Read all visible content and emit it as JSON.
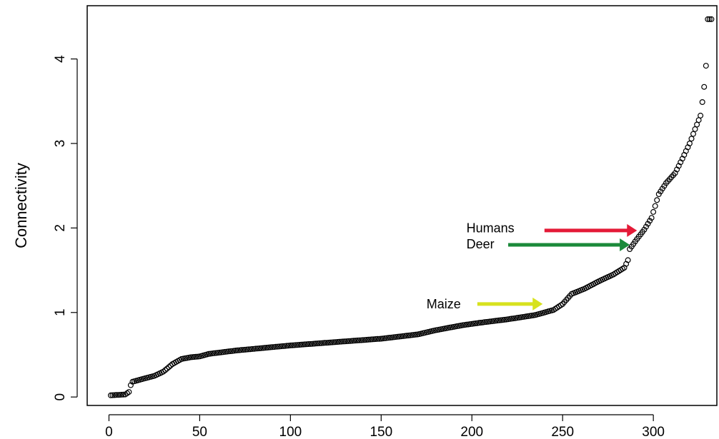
{
  "chart_data": {
    "type": "scatter",
    "title": "",
    "xlabel": "",
    "ylabel": "Connectivity",
    "xlim": [
      -12,
      335
    ],
    "ylim": [
      -0.1,
      4.63
    ],
    "x_ticks": [
      0,
      50,
      100,
      150,
      200,
      250,
      300
    ],
    "y_ticks": [
      0,
      1,
      2,
      3,
      4
    ],
    "grid": false,
    "marker": "open-circle",
    "anchors": [
      [
        1,
        0.02
      ],
      [
        9,
        0.03
      ],
      [
        11,
        0.06
      ],
      [
        12,
        0.14
      ],
      [
        13,
        0.18
      ],
      [
        18,
        0.21
      ],
      [
        25,
        0.25
      ],
      [
        30,
        0.3
      ],
      [
        35,
        0.39
      ],
      [
        40,
        0.45
      ],
      [
        45,
        0.47
      ],
      [
        50,
        0.48
      ],
      [
        55,
        0.51
      ],
      [
        70,
        0.55
      ],
      [
        85,
        0.58
      ],
      [
        100,
        0.61
      ],
      [
        125,
        0.65
      ],
      [
        150,
        0.69
      ],
      [
        170,
        0.74
      ],
      [
        180,
        0.79
      ],
      [
        195,
        0.85
      ],
      [
        205,
        0.88
      ],
      [
        220,
        0.92
      ],
      [
        235,
        0.97
      ],
      [
        245,
        1.03
      ],
      [
        250,
        1.1
      ],
      [
        255,
        1.22
      ],
      [
        262,
        1.28
      ],
      [
        270,
        1.37
      ],
      [
        278,
        1.45
      ],
      [
        284,
        1.53
      ],
      [
        286,
        1.62
      ],
      [
        287,
        1.75
      ],
      [
        291,
        1.87
      ],
      [
        295,
        1.98
      ],
      [
        299,
        2.12
      ],
      [
        303,
        2.4
      ],
      [
        307,
        2.53
      ],
      [
        312,
        2.65
      ],
      [
        316,
        2.82
      ],
      [
        320,
        3.0
      ],
      [
        323,
        3.17
      ],
      [
        326,
        3.33
      ],
      [
        327,
        3.49
      ],
      [
        328,
        3.67
      ],
      [
        329,
        3.92
      ],
      [
        330,
        4.47
      ],
      [
        332,
        4.47
      ]
    ],
    "annotations": [
      {
        "text": "Humans",
        "color": "#e41a37",
        "arrow_from": [
          240,
          1.97
        ],
        "arrow_to": [
          291,
          1.97
        ],
        "label_at": [
          197,
          2.0
        ]
      },
      {
        "text": "Deer",
        "color": "#1b8a3a",
        "arrow_from": [
          220,
          1.8
        ],
        "arrow_to": [
          287,
          1.8
        ],
        "label_at": [
          197,
          1.81
        ]
      },
      {
        "text": "Maize",
        "color": "#d7e21e",
        "arrow_from": [
          203,
          1.1
        ],
        "arrow_to": [
          239,
          1.1
        ],
        "label_at": [
          175,
          1.1
        ]
      }
    ]
  }
}
